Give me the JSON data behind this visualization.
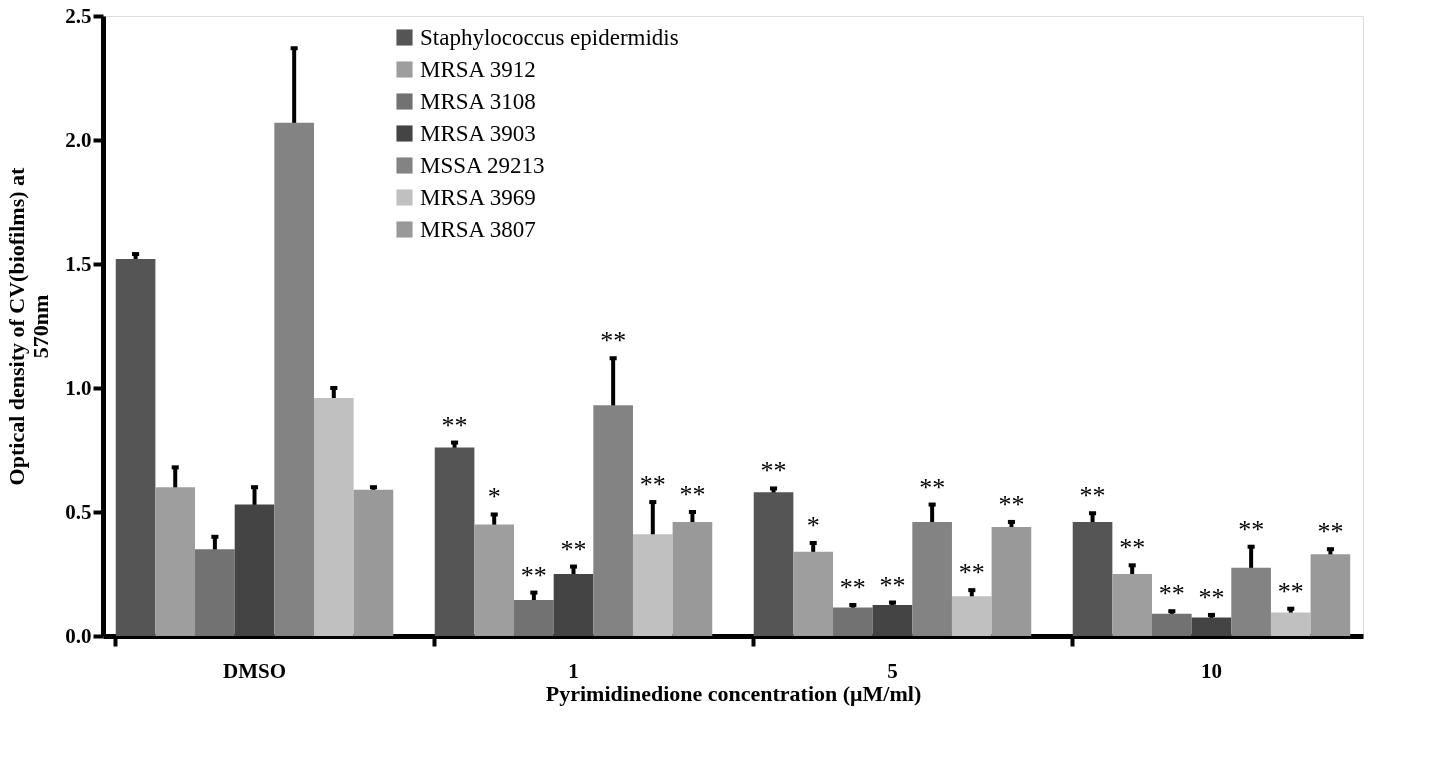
{
  "chart_data": {
    "type": "bar",
    "xlabel": "Pyrimidinedione concentration (μM/ml)",
    "ylabel": "Optical density of CV(biofilms) at\n570nm",
    "categories": [
      "DMSO",
      "1",
      "5",
      "10"
    ],
    "ylim": [
      0,
      2.5
    ],
    "yticks": [
      {
        "value": 0,
        "label": "0.0"
      },
      0.5,
      {
        "value": 1,
        "label": "1.0"
      },
      1.5,
      {
        "value": 2,
        "label": "2.0"
      },
      2.5
    ],
    "grid": false,
    "legend": "top",
    "series": [
      {
        "name": "Staphylococcus epidermidis",
        "color": "#555555",
        "values": [
          1.52,
          0.76,
          0.58,
          0.46
        ],
        "errors": [
          0.02,
          0.02,
          0.015,
          0.035
        ],
        "value_labels": [
          null,
          "**",
          "**",
          "**"
        ]
      },
      {
        "name": "MRSA 3912",
        "color": "#9e9e9e",
        "values": [
          0.6,
          0.45,
          0.34,
          0.25
        ],
        "errors": [
          0.08,
          0.04,
          0.035,
          0.035
        ],
        "value_labels": [
          null,
          "*",
          "*",
          "**"
        ]
      },
      {
        "name": "MRSA 3108",
        "color": "#727272",
        "values": [
          0.35,
          0.145,
          0.115,
          0.09
        ],
        "errors": [
          0.05,
          0.03,
          0.01,
          0.01
        ],
        "value_labels": [
          null,
          "**",
          "**",
          "**"
        ]
      },
      {
        "name": "MRSA 3903",
        "color": "#444444",
        "values": [
          0.53,
          0.25,
          0.125,
          0.075
        ],
        "errors": [
          0.07,
          0.03,
          0.01,
          0.01
        ],
        "value_labels": [
          null,
          "**",
          "**",
          "**"
        ]
      },
      {
        "name": "MSSA 29213",
        "color": "#838383",
        "values": [
          2.07,
          0.93,
          0.46,
          0.275
        ],
        "errors": [
          0.3,
          0.19,
          0.07,
          0.085
        ],
        "value_labels": [
          null,
          "**",
          "**",
          "**"
        ]
      },
      {
        "name": "MRSA 3969",
        "color": "#c0c0c0",
        "values": [
          0.96,
          0.41,
          0.16,
          0.095
        ],
        "errors": [
          0.04,
          0.13,
          0.025,
          0.015
        ],
        "value_labels": [
          null,
          "**",
          "**",
          "**"
        ]
      },
      {
        "name": "MRSA 3807",
        "color": "#999999",
        "values": [
          0.59,
          0.46,
          0.44,
          0.33
        ],
        "errors": [
          0.01,
          0.04,
          0.02,
          0.02
        ],
        "value_labels": [
          null,
          "**",
          "**",
          "**"
        ]
      }
    ]
  }
}
